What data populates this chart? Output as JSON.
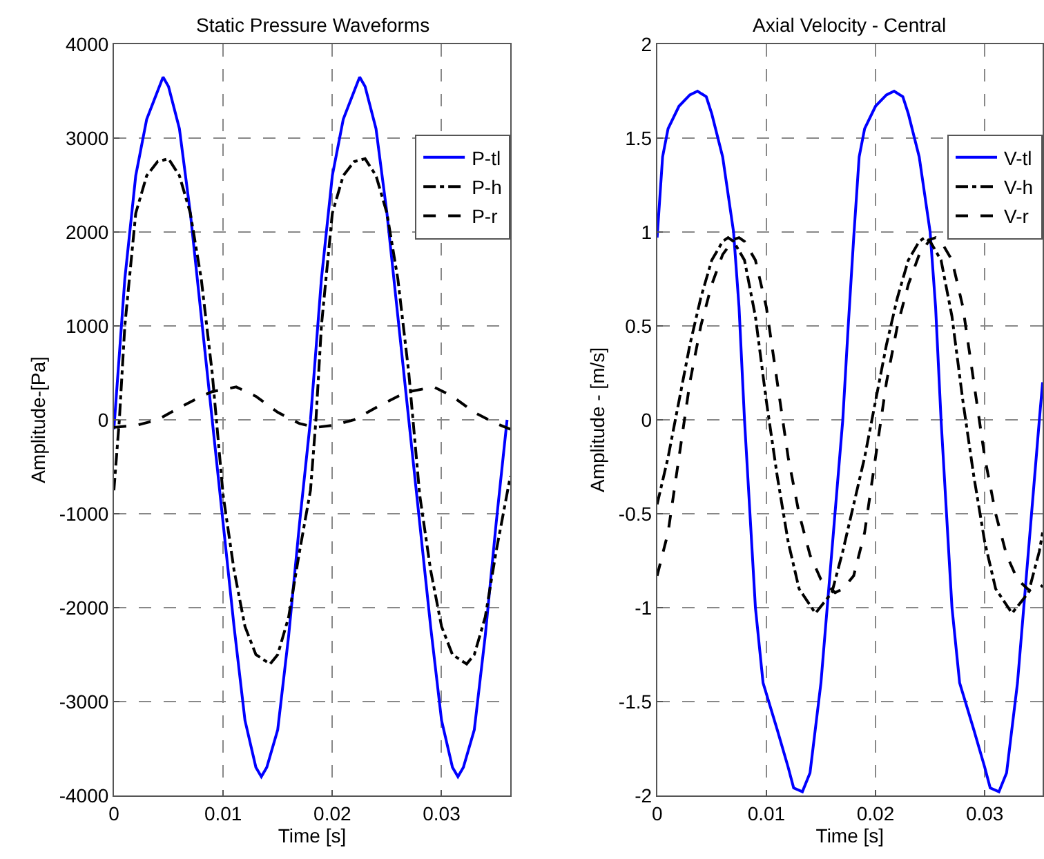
{
  "chart_data": [
    {
      "type": "line",
      "title": "Static Pressure Waveforms",
      "xlabel": "Time [s]",
      "ylabel": "Amplitude-[Pa]",
      "xlim": [
        0,
        0.0363
      ],
      "xticks": [
        0,
        0.01,
        0.02,
        0.03
      ],
      "ylim": [
        -4000,
        4000
      ],
      "yticks": [
        -4000,
        -3000,
        -2000,
        -1000,
        0,
        1000,
        2000,
        3000,
        4000
      ],
      "grid": true,
      "legend": "top right",
      "marker": "none",
      "series": [
        {
          "name": "P-tl",
          "color": "#0000ff",
          "line_style": "solid",
          "x": [
            0,
            0.001,
            0.002,
            0.003,
            0.004,
            0.0045,
            0.005,
            0.006,
            0.007,
            0.008,
            0.009,
            0.01,
            0.011,
            0.012,
            0.013,
            0.0135,
            0.014,
            0.015,
            0.016,
            0.017,
            0.018,
            0.019,
            0.02,
            0.021,
            0.022,
            0.0225,
            0.023,
            0.024,
            0.025,
            0.026,
            0.027,
            0.028,
            0.029,
            0.03,
            0.031,
            0.0315,
            0.032,
            0.033,
            0.034,
            0.035,
            0.036
          ],
          "values": [
            -100,
            1500,
            2600,
            3200,
            3500,
            3650,
            3550,
            3100,
            2200,
            1100,
            0,
            -1100,
            -2200,
            -3200,
            -3700,
            -3800,
            -3700,
            -3300,
            -2300,
            -1100,
            0,
            1500,
            2600,
            3200,
            3500,
            3650,
            3550,
            3100,
            2200,
            1100,
            0,
            -1100,
            -2200,
            -3200,
            -3700,
            -3800,
            -3700,
            -3300,
            -2300,
            -1100,
            0
          ]
        },
        {
          "name": "P-h",
          "color": "#000000",
          "line_style": "dashdot",
          "x": [
            0,
            0.0005,
            0.001,
            0.002,
            0.003,
            0.004,
            0.005,
            0.006,
            0.007,
            0.008,
            0.009,
            0.01,
            0.011,
            0.012,
            0.013,
            0.0143,
            0.015,
            0.016,
            0.017,
            0.018,
            0.0185,
            0.019,
            0.02,
            0.021,
            0.022,
            0.023,
            0.024,
            0.025,
            0.026,
            0.027,
            0.028,
            0.029,
            0.03,
            0.031,
            0.0323,
            0.033,
            0.034,
            0.035,
            0.0363
          ],
          "values": [
            -750,
            0,
            1000,
            2200,
            2600,
            2750,
            2780,
            2600,
            2200,
            1500,
            500,
            -800,
            -1600,
            -2200,
            -2500,
            -2600,
            -2500,
            -2100,
            -1400,
            -750,
            0,
            1000,
            2200,
            2600,
            2750,
            2780,
            2600,
            2200,
            1500,
            500,
            -800,
            -1600,
            -2200,
            -2500,
            -2600,
            -2500,
            -2100,
            -1400,
            -600
          ]
        },
        {
          "name": "P-r",
          "color": "#000000",
          "line_style": "dashed",
          "x": [
            0,
            0.002,
            0.004,
            0.006,
            0.008,
            0.009,
            0.0112,
            0.013,
            0.015,
            0.017,
            0.0185,
            0.02,
            0.022,
            0.024,
            0.026,
            0.027,
            0.0293,
            0.031,
            0.033,
            0.035,
            0.0363
          ],
          "values": [
            -80,
            -60,
            0,
            130,
            250,
            300,
            350,
            250,
            80,
            -40,
            -80,
            -60,
            0,
            130,
            250,
            300,
            350,
            250,
            80,
            -40,
            -100
          ]
        }
      ]
    },
    {
      "type": "line",
      "title": "Axial Velocity - Central",
      "xlabel": "Time [s]",
      "ylabel": "Amplitude - [m/s]",
      "xlim": [
        0,
        0.0353
      ],
      "xticks": [
        0,
        0.01,
        0.02,
        0.03
      ],
      "ylim": [
        -2,
        2
      ],
      "yticks": [
        -2,
        -1.5,
        -1,
        -0.5,
        0,
        0.5,
        1,
        1.5,
        2
      ],
      "grid": true,
      "legend": "top right",
      "marker": "none",
      "series": [
        {
          "name": "V-tl",
          "color": "#0000ff",
          "line_style": "solid",
          "x": [
            0,
            0.0005,
            0.001,
            0.002,
            0.003,
            0.0037,
            0.0045,
            0.005,
            0.006,
            0.007,
            0.0075,
            0.008,
            0.0085,
            0.009,
            0.0097,
            0.011,
            0.012,
            0.0125,
            0.0133,
            0.014,
            0.015,
            0.016,
            0.017,
            0.0175,
            0.018,
            0.0185,
            0.019,
            0.02,
            0.021,
            0.0217,
            0.0225,
            0.023,
            0.024,
            0.025,
            0.0255,
            0.026,
            0.0265,
            0.027,
            0.0277,
            0.029,
            0.03,
            0.0305,
            0.0313,
            0.032,
            0.033,
            0.034,
            0.035,
            0.0353
          ],
          "values": [
            0.97,
            1.4,
            1.55,
            1.67,
            1.73,
            1.75,
            1.72,
            1.63,
            1.4,
            1.0,
            0.6,
            0.0,
            -0.5,
            -1.0,
            -1.4,
            -1.65,
            -1.85,
            -1.96,
            -1.98,
            -1.88,
            -1.4,
            -0.7,
            0.0,
            0.5,
            0.97,
            1.4,
            1.55,
            1.67,
            1.73,
            1.75,
            1.72,
            1.63,
            1.4,
            1.0,
            0.6,
            0.0,
            -0.5,
            -1.0,
            -1.4,
            -1.65,
            -1.85,
            -1.96,
            -1.98,
            -1.88,
            -1.4,
            -0.7,
            0.0,
            0.2
          ]
        },
        {
          "name": "V-h",
          "color": "#000000",
          "line_style": "dashdot",
          "x": [
            0,
            0.001,
            0.002,
            0.003,
            0.004,
            0.005,
            0.006,
            0.0065,
            0.007,
            0.008,
            0.009,
            0.01,
            0.011,
            0.012,
            0.013,
            0.0145,
            0.016,
            0.017,
            0.018,
            0.019,
            0.02,
            0.021,
            0.022,
            0.023,
            0.024,
            0.0245,
            0.025,
            0.026,
            0.027,
            0.028,
            0.029,
            0.03,
            0.031,
            0.0325,
            0.034,
            0.035,
            0.0353
          ],
          "values": [
            -0.45,
            -0.2,
            0.1,
            0.4,
            0.65,
            0.85,
            0.95,
            0.97,
            0.95,
            0.85,
            0.55,
            0.1,
            -0.3,
            -0.65,
            -0.9,
            -1.03,
            -0.92,
            -0.7,
            -0.45,
            -0.2,
            0.1,
            0.4,
            0.65,
            0.85,
            0.95,
            0.97,
            0.95,
            0.85,
            0.55,
            0.1,
            -0.3,
            -0.65,
            -0.9,
            -1.03,
            -0.92,
            -0.7,
            -0.6
          ]
        },
        {
          "name": "V-r",
          "color": "#000000",
          "line_style": "dashed",
          "x": [
            0,
            0.001,
            0.002,
            0.003,
            0.004,
            0.005,
            0.006,
            0.007,
            0.0075,
            0.008,
            0.009,
            0.01,
            0.011,
            0.012,
            0.013,
            0.014,
            0.015,
            0.0163,
            0.017,
            0.018,
            0.019,
            0.02,
            0.021,
            0.022,
            0.023,
            0.024,
            0.025,
            0.0255,
            0.026,
            0.027,
            0.028,
            0.029,
            0.03,
            0.031,
            0.032,
            0.033,
            0.0343,
            0.035,
            0.0353
          ],
          "values": [
            -0.83,
            -0.6,
            -0.2,
            0.2,
            0.5,
            0.72,
            0.88,
            0.96,
            0.97,
            0.95,
            0.85,
            0.6,
            0.2,
            -0.2,
            -0.5,
            -0.72,
            -0.85,
            -0.92,
            -0.9,
            -0.83,
            -0.6,
            -0.2,
            0.2,
            0.5,
            0.72,
            0.88,
            0.96,
            0.97,
            0.95,
            0.85,
            0.6,
            0.2,
            -0.2,
            -0.5,
            -0.72,
            -0.85,
            -0.92,
            -0.9,
            -0.88
          ]
        }
      ]
    }
  ]
}
